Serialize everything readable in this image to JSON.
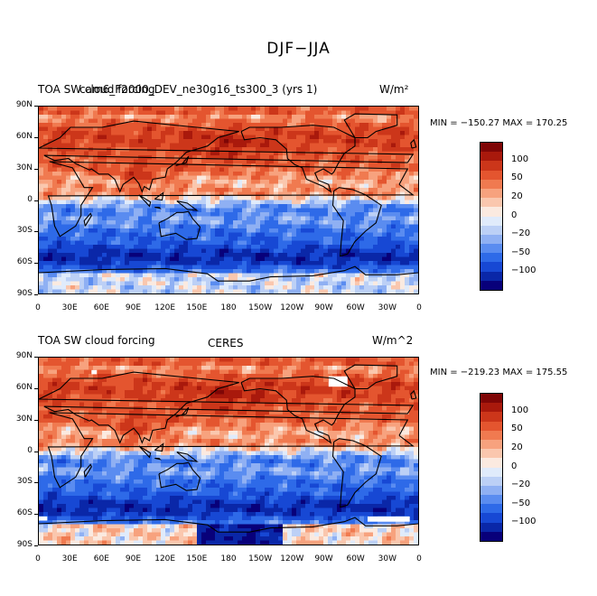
{
  "title": "DJF−JJA",
  "colors": [
    "#08007a",
    "#0a27a8",
    "#1748d4",
    "#2e6ae8",
    "#5a8cf0",
    "#8fb0f3",
    "#bcd0f6",
    "#e0ebfb",
    "#fbeae0",
    "#fac7ae",
    "#f7a27e",
    "#f07a50",
    "#e4552f",
    "#cc361a",
    "#a9190c",
    "#7f0606"
  ],
  "colorbar_labels": [
    "100",
    "50",
    "20",
    "0",
    "−20",
    "−50",
    "−100"
  ],
  "lat_ticks": [
    "90N",
    "60N",
    "30N",
    "0",
    "30S",
    "60S",
    "90S"
  ],
  "lon_ticks": [
    "0",
    "30E",
    "60E",
    "90E",
    "120E",
    "150E",
    "180",
    "150W",
    "120W",
    "90W",
    "60W",
    "30W",
    "0"
  ],
  "panels": [
    {
      "left_title": "TOA SW cloud forcing",
      "center_title": "cam6_F2000_DEV_ne30g16_ts300_3 (yrs 1)",
      "right_title": "W/m²",
      "min_max": "MIN = −150.27  MAX = 170.25"
    },
    {
      "left_title": "TOA SW cloud forcing",
      "center_title": "CERES",
      "right_title": "W/m^2",
      "min_max": "MIN = −219.23  MAX = 175.55"
    }
  ]
}
